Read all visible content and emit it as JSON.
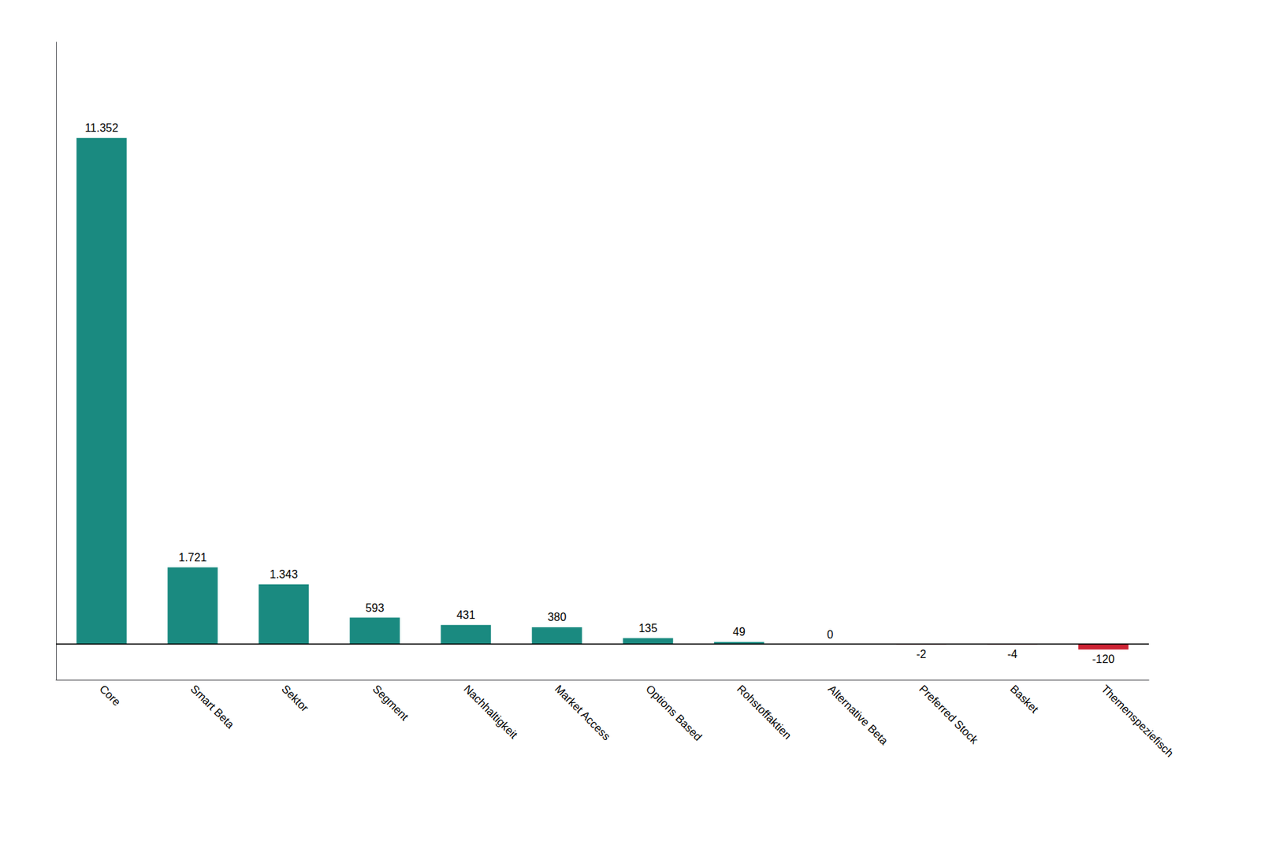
{
  "chart_data": {
    "type": "bar",
    "categories": [
      "Core",
      "Smart Beta",
      "Sektor",
      "Segment",
      "Nachhaltigkeit",
      "Market Access",
      "Options Based",
      "Rohstoffaktien",
      "Alternative Beta",
      "Preferred Stock",
      "Basket",
      "Themenspeziefisch"
    ],
    "values": [
      11352,
      1721,
      1343,
      593,
      431,
      380,
      135,
      49,
      0,
      -2,
      -4,
      -120
    ],
    "value_labels": [
      "11.352",
      "1.721",
      "1.343",
      "593",
      "431",
      "380",
      "135",
      "49",
      "0",
      "-2",
      "-4",
      "-120"
    ],
    "colors": [
      "#1a8a80",
      "#1a8a80",
      "#1a8a80",
      "#1a8a80",
      "#1a8a80",
      "#1a8a80",
      "#1a8a80",
      "#1a8a80",
      "#1a8a80",
      "#cc2233",
      "#cc2233",
      "#cc2233"
    ],
    "ylim": [
      -800,
      13500
    ],
    "tick_labels": "x",
    "data_labels": true,
    "grid": false
  }
}
